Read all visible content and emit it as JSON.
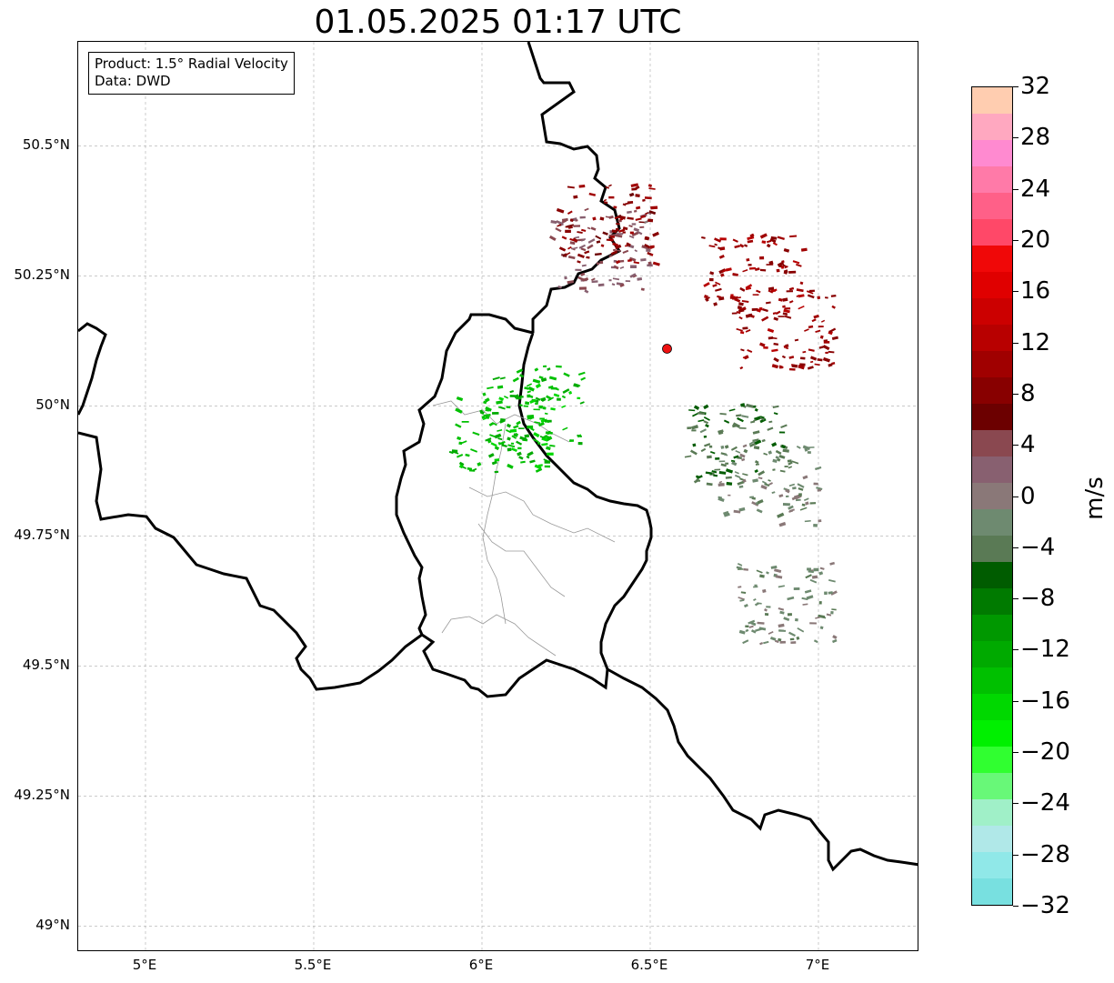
{
  "title": "01.05.2025 01:17 UTC",
  "info": {
    "line1": "Product: 1.5° Radial Velocity",
    "line2": "Data: DWD"
  },
  "map": {
    "lon_range": [
      4.8,
      7.3
    ],
    "lat_range": [
      48.95,
      50.7
    ],
    "lat_ticks": [
      {
        "value": 49.0,
        "label": "49°N"
      },
      {
        "value": 49.25,
        "label": "49.25°N"
      },
      {
        "value": 49.5,
        "label": "49.5°N"
      },
      {
        "value": 49.75,
        "label": "49.75°N"
      },
      {
        "value": 50.0,
        "label": "50°N"
      },
      {
        "value": 50.25,
        "label": "50.25°N"
      },
      {
        "value": 50.5,
        "label": "50.5°N"
      }
    ],
    "lon_ticks": [
      {
        "value": 5.0,
        "label": "5°E"
      },
      {
        "value": 5.5,
        "label": "5.5°E"
      },
      {
        "value": 6.0,
        "label": "6°E"
      },
      {
        "value": 6.5,
        "label": "6.5°E"
      },
      {
        "value": 7.0,
        "label": "7°E"
      }
    ],
    "radar_site": {
      "lon": 6.55,
      "lat": 50.11,
      "color": "#ee1111"
    },
    "gridlines": true
  },
  "colorbar": {
    "unit": "m/s",
    "range": [
      -32,
      32
    ],
    "tick_labels": [
      "32",
      "28",
      "24",
      "20",
      "16",
      "12",
      "8",
      "4",
      "0",
      "−4",
      "−8",
      "−12",
      "−16",
      "−20",
      "−24",
      "−28",
      "−32"
    ],
    "tick_values": [
      32,
      28,
      24,
      20,
      16,
      12,
      8,
      4,
      0,
      -4,
      -8,
      -12,
      -16,
      -20,
      -24,
      -28,
      -32
    ],
    "colors_top_to_bottom": [
      "#ffcdb0",
      "#ffa8c0",
      "#ff8ad0",
      "#ff7aa8",
      "#ff6088",
      "#ff4868",
      "#f00808",
      "#e00000",
      "#cc0000",
      "#b80000",
      "#a00000",
      "#880000",
      "#6c0000",
      "#8a4850",
      "#886070",
      "#8a7878",
      "#6e8a70",
      "#5a7a55",
      "#005c00",
      "#007a00",
      "#009800",
      "#00aa00",
      "#00c000",
      "#00d800",
      "#00f000",
      "#30ff30",
      "#68f878",
      "#a0f0c8",
      "#b0e8e8",
      "#90e8e8",
      "#78e0e0"
    ]
  },
  "chart_data": {
    "type": "heatmap",
    "title": "01.05.2025 01:17 UTC",
    "xlabel": "",
    "ylabel": "",
    "x_range": [
      4.8,
      7.3
    ],
    "y_range": [
      48.95,
      50.7
    ],
    "value_unit": "m/s",
    "value_range": [
      -32,
      32
    ],
    "clusters": [
      {
        "lon": 6.35,
        "lat": 50.3,
        "value": 3
      },
      {
        "lon": 6.37,
        "lat": 50.35,
        "value": 9
      },
      {
        "lon": 6.8,
        "lat": 50.25,
        "value": 10
      },
      {
        "lon": 6.9,
        "lat": 50.15,
        "value": 10
      },
      {
        "lon": 6.05,
        "lat": 49.95,
        "value": -14
      },
      {
        "lon": 6.15,
        "lat": 50.0,
        "value": -14
      },
      {
        "lon": 6.75,
        "lat": 49.93,
        "value": -5
      },
      {
        "lon": 6.85,
        "lat": 49.85,
        "value": -2
      },
      {
        "lon": 6.9,
        "lat": 49.62,
        "value": -2
      }
    ]
  }
}
